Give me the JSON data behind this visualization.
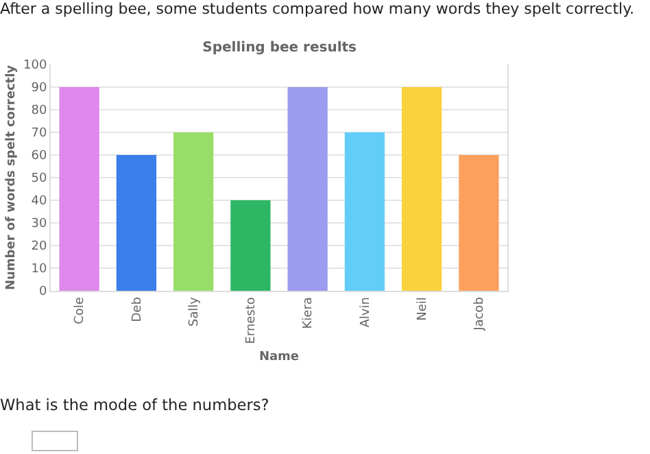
{
  "chart_data": {
    "type": "bar",
    "title": "Spelling bee results",
    "xlabel": "Name",
    "ylabel": "Number of words spelt correctly",
    "annotations": [
      "After a spelling bee, some students compared how many words they spelt correctly.",
      "What is the mode of the numbers?"
    ],
    "categories": [
      "Cole",
      "Deb",
      "Sally",
      "Ernesto",
      "Kiera",
      "Alvin",
      "Neil",
      "Jacob"
    ],
    "values": [
      90,
      60,
      70,
      40,
      90,
      70,
      90,
      60
    ],
    "colors": [
      "#dd88ea",
      "#3a7fea",
      "#97de68",
      "#2db765",
      "#9b9bef",
      "#62cdf8",
      "#f8d33e",
      "#fca05d"
    ],
    "ylim": [
      0,
      100
    ],
    "yticks": [
      0,
      10,
      20,
      30,
      40,
      50,
      60,
      70,
      80,
      90,
      100
    ],
    "grid": "y"
  }
}
